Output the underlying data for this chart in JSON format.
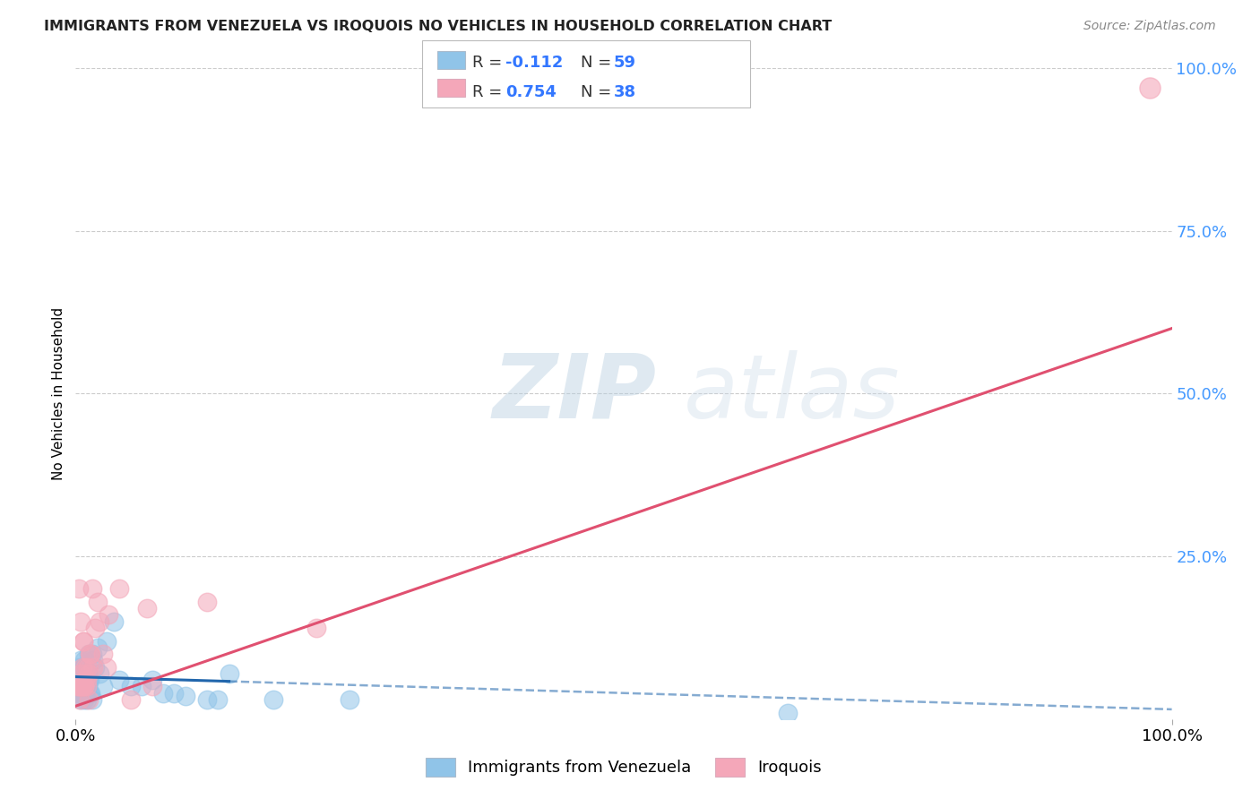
{
  "title": "IMMIGRANTS FROM VENEZUELA VS IROQUOIS NO VEHICLES IN HOUSEHOLD CORRELATION CHART",
  "source": "Source: ZipAtlas.com",
  "ylabel": "No Vehicles in Household",
  "xlim": [
    0,
    100
  ],
  "ylim": [
    0,
    100
  ],
  "ytick_vals": [
    25,
    50,
    75,
    100
  ],
  "legend_r1": "-0.112",
  "legend_n1": "59",
  "legend_r2": "0.754",
  "legend_n2": "38",
  "legend_label1": "Immigrants from Venezuela",
  "legend_label2": "Iroquois",
  "color_blue": "#90c4e8",
  "color_pink": "#f4a7b9",
  "trend_blue": "#2166ac",
  "trend_pink": "#e05070",
  "watermark_zip": "ZIP",
  "watermark_atlas": "atlas",
  "blue_points_x": [
    0.2,
    0.3,
    0.3,
    0.3,
    0.4,
    0.4,
    0.4,
    0.4,
    0.5,
    0.5,
    0.5,
    0.5,
    0.5,
    0.6,
    0.6,
    0.6,
    0.6,
    0.7,
    0.7,
    0.7,
    0.8,
    0.8,
    0.8,
    0.8,
    0.9,
    0.9,
    0.9,
    1.0,
    1.0,
    1.0,
    1.1,
    1.1,
    1.2,
    1.2,
    1.3,
    1.3,
    1.4,
    1.5,
    1.5,
    1.6,
    1.8,
    2.0,
    2.2,
    2.5,
    2.8,
    3.5,
    4.0,
    5.0,
    6.0,
    7.0,
    8.0,
    9.0,
    10.0,
    12.0,
    13.0,
    14.0,
    18.0,
    25.0,
    65.0
  ],
  "blue_points_y": [
    6.0,
    8.0,
    5.0,
    4.0,
    6.0,
    4.0,
    7.0,
    5.0,
    5.0,
    3.0,
    7.0,
    9.0,
    6.0,
    4.0,
    6.0,
    8.0,
    5.0,
    6.0,
    4.0,
    8.0,
    5.0,
    3.0,
    7.0,
    9.0,
    6.0,
    4.0,
    8.0,
    5.0,
    6.0,
    3.0,
    7.0,
    5.0,
    10.0,
    6.0,
    6.0,
    4.0,
    4.0,
    3.0,
    10.0,
    9.0,
    8.0,
    11.0,
    7.0,
    5.0,
    12.0,
    15.0,
    6.0,
    5.0,
    5.0,
    6.0,
    4.0,
    4.0,
    3.5,
    3.0,
    3.0,
    7.0,
    3.0,
    3.0,
    1.0
  ],
  "pink_points_x": [
    0.2,
    0.3,
    0.3,
    0.4,
    0.5,
    0.5,
    0.6,
    0.6,
    0.7,
    0.8,
    0.9,
    1.0,
    1.0,
    1.1,
    1.2,
    1.3,
    1.5,
    1.6,
    1.8,
    2.0,
    2.2,
    2.5,
    3.0,
    4.0,
    5.0,
    6.5,
    7.0,
    12.0,
    22.0,
    0.4,
    0.8,
    1.4,
    0.7,
    2.8,
    0.5,
    1.2,
    0.6,
    0.9
  ],
  "pink_points_y": [
    5.0,
    20.0,
    5.0,
    5.0,
    7.0,
    15.0,
    5.0,
    8.0,
    12.0,
    5.0,
    8.0,
    6.0,
    5.0,
    8.0,
    3.0,
    10.0,
    20.0,
    8.0,
    14.0,
    18.0,
    15.0,
    10.0,
    16.0,
    20.0,
    3.0,
    17.0,
    5.0,
    18.0,
    14.0,
    3.0,
    5.0,
    10.0,
    12.0,
    8.0,
    5.0,
    7.0,
    5.0,
    6.0
  ],
  "top_right_pink_x": 98,
  "top_right_pink_y": 97,
  "blue_trend_x0": 0,
  "blue_trend_y0": 6.5,
  "blue_trend_x1": 100,
  "blue_trend_y1": 1.5,
  "blue_solid_end": 14,
  "pink_trend_x0": 0,
  "pink_trend_y0": 2.0,
  "pink_trend_x1": 100,
  "pink_trend_y1": 60.0
}
